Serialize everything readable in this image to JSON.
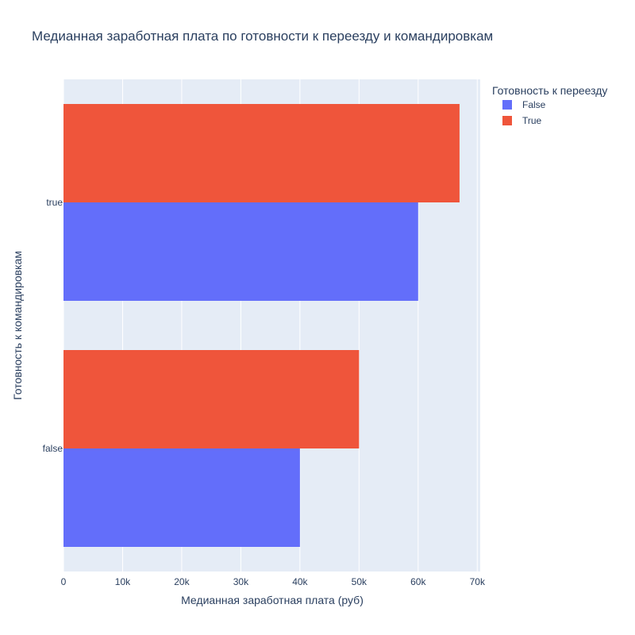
{
  "chart_data": {
    "type": "bar",
    "orientation": "horizontal",
    "title": "Медианная заработная плата по готовности к переезду и командировкам",
    "xlabel": "Медианная заработная плата (руб)",
    "ylabel": "Готовность к командировкам",
    "xlim": [
      0,
      70500
    ],
    "x_ticks": [
      0,
      10000,
      20000,
      30000,
      40000,
      50000,
      60000,
      70000
    ],
    "x_tick_labels": [
      "0",
      "10k",
      "20k",
      "30k",
      "40k",
      "50k",
      "60k",
      "70k"
    ],
    "categories": [
      "false",
      "true"
    ],
    "grid": true,
    "legend": {
      "title": "Готовность к переезду",
      "placement": "top-right"
    },
    "series": [
      {
        "name": "False",
        "color": "#636efa",
        "values": [
          40000,
          60000
        ]
      },
      {
        "name": "True",
        "color": "#ef553b",
        "values": [
          50000,
          67000
        ]
      }
    ]
  }
}
